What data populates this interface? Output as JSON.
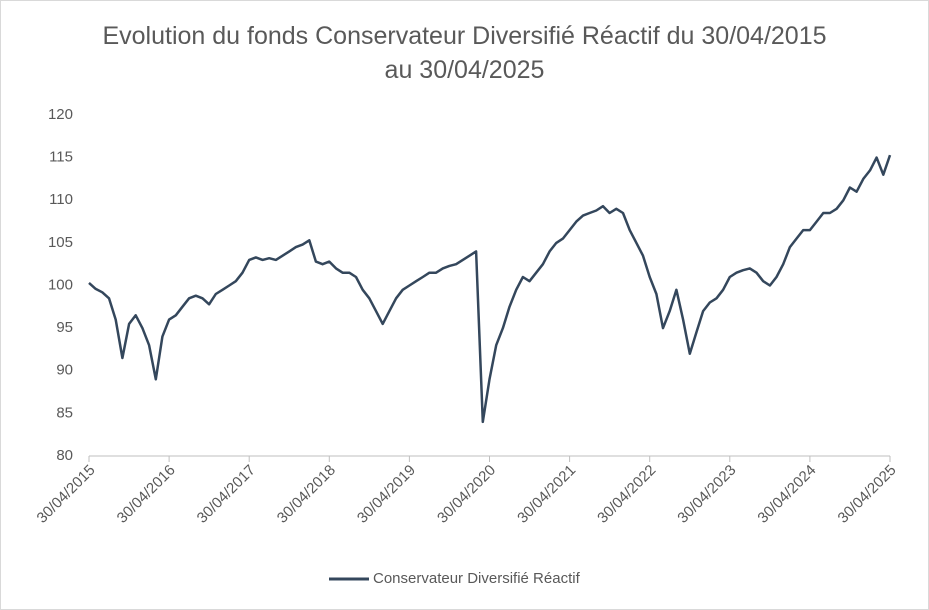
{
  "chart_data": {
    "type": "line",
    "title": "Evolution du fonds Conservateur Diversifié Réactif du 30/04/2015 au 30/04/2025",
    "categories": [
      "30/04/2015",
      null,
      null,
      null,
      null,
      null,
      null,
      null,
      null,
      null,
      null,
      null,
      "30/04/2016",
      null,
      null,
      null,
      null,
      null,
      null,
      null,
      null,
      null,
      null,
      null,
      "30/04/2017",
      null,
      null,
      null,
      null,
      null,
      null,
      null,
      null,
      null,
      null,
      null,
      "30/04/2018",
      null,
      null,
      null,
      null,
      null,
      null,
      null,
      null,
      null,
      null,
      null,
      "30/04/2019",
      null,
      null,
      null,
      null,
      null,
      null,
      null,
      null,
      null,
      null,
      null,
      "30/04/2020",
      null,
      null,
      null,
      null,
      null,
      null,
      null,
      null,
      null,
      null,
      null,
      "30/04/2021",
      null,
      null,
      null,
      null,
      null,
      null,
      null,
      null,
      null,
      null,
      null,
      "30/04/2022",
      null,
      null,
      null,
      null,
      null,
      null,
      null,
      null,
      null,
      null,
      null,
      "30/04/2023",
      null,
      null,
      null,
      null,
      null,
      null,
      null,
      null,
      null,
      null,
      null,
      "30/04/2024",
      null,
      null,
      null,
      null,
      null,
      null,
      null,
      null,
      null,
      null,
      null,
      "30/04/2025"
    ],
    "series": [
      {
        "name": "Conservateur Diversifié Réactif",
        "color": "#34475c",
        "values": [
          100.3,
          99.6,
          99.2,
          98.5,
          96,
          91.5,
          95.5,
          96.5,
          95,
          93,
          89,
          94,
          96,
          96.5,
          97.5,
          98.5,
          98.8,
          98.5,
          97.8,
          99,
          99.5,
          100,
          100.5,
          101.5,
          103,
          103.3,
          103,
          103.2,
          103,
          103.5,
          104,
          104.5,
          104.8,
          105.3,
          102.8,
          102.5,
          102.8,
          102,
          101.5,
          101.5,
          101,
          99.5,
          98.5,
          97,
          95.5,
          97,
          98.5,
          99.5,
          100,
          100.5,
          101,
          101.5,
          101.5,
          102,
          102.3,
          102.5,
          103,
          103.5,
          104,
          84,
          89,
          93,
          95,
          97.5,
          99.5,
          101,
          100.5,
          101.5,
          102.5,
          104,
          105,
          105.5,
          106.5,
          107.5,
          108.2,
          108.5,
          108.8,
          109.3,
          108.5,
          109,
          108.5,
          106.5,
          105,
          103.5,
          101,
          99,
          95,
          97,
          99.5,
          96,
          92,
          94.5,
          97,
          98,
          98.5,
          99.5,
          101,
          101.5,
          101.8,
          102,
          101.5,
          100.5,
          100,
          101,
          102.5,
          104.5,
          105.5,
          106.5,
          106.5,
          107.5,
          108.5,
          108.5,
          109,
          110,
          111.5,
          111,
          112.5,
          113.5,
          115,
          113,
          115.3
        ]
      }
    ],
    "ylim": [
      80,
      120
    ],
    "yticks": [
      80,
      85,
      90,
      95,
      100,
      105,
      110,
      115,
      120
    ],
    "grid": false,
    "legend": "bottom"
  }
}
